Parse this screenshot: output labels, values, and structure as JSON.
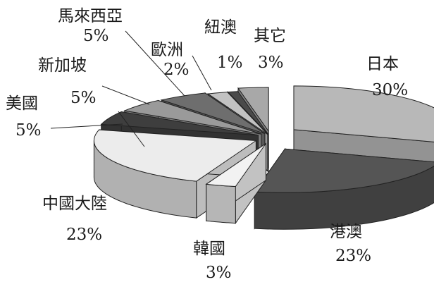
{
  "chart_data": {
    "type": "pie",
    "style": "exploded 3d",
    "categories": [
      "日本",
      "港澳",
      "韓國",
      "中國大陸",
      "美國",
      "新加坡",
      "馬來西亞",
      "歐洲",
      "紐澳",
      "其它"
    ],
    "values": [
      30,
      23,
      3,
      23,
      5,
      5,
      5,
      2,
      1,
      3
    ],
    "value_labels": [
      "30%",
      "23%",
      "3%",
      "23%",
      "5%",
      "5%",
      "5%",
      "2%",
      "1%",
      "3%"
    ],
    "units": "%",
    "colors": {
      "日本": "#b8b8b8",
      "港澳": "#555555",
      "韓國": "#f2f2f2",
      "中國大陸": "#ececec",
      "美國": "#3e3e3e",
      "新加坡": "#9a9a9a",
      "馬來西亞": "#6e6e6e",
      "歐洲": "#c2c2c2",
      "紐澳": "#4a4a4a",
      "其它": "#a8a8a8"
    }
  }
}
